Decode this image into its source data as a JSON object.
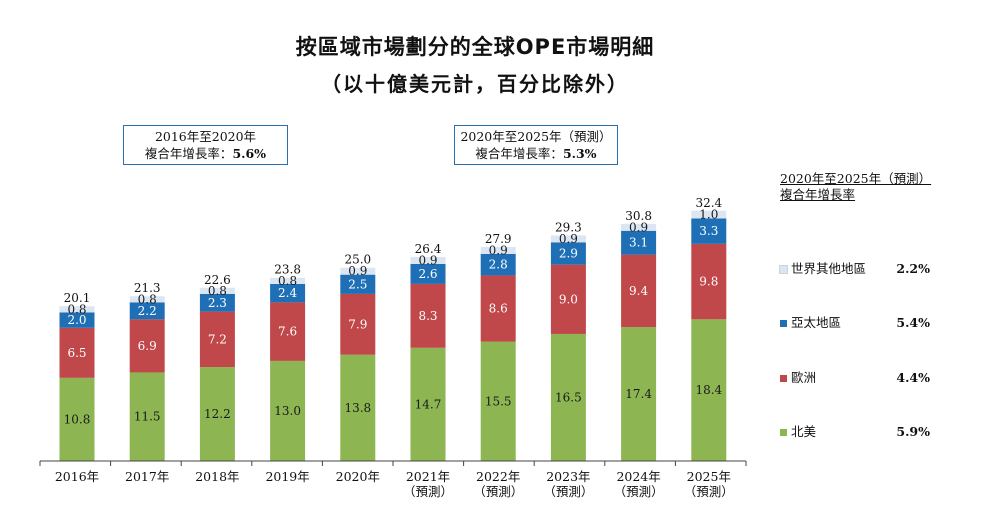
{
  "title_line1": "按區域市場劃分的全球OPE市場明細",
  "title_line2": "（以十億美元計，百分比除外）",
  "cagr_hist": {
    "line1": "2016年至2020年",
    "label": "複合年增長率：",
    "value": "5.6%"
  },
  "cagr_fcst": {
    "line1": "2020年至2025年（預測）",
    "label": "複合年增長率：",
    "value": "5.3%"
  },
  "legend": {
    "header_line1": "2020年至2025年（預測）",
    "header_line2": "複合年增長率",
    "items": [
      {
        "name": "世界其他地區",
        "cagr": "2.2%",
        "color": "#dbe6f2"
      },
      {
        "name": "亞太地區",
        "cagr": "5.4%",
        "color": "#1f6fb6"
      },
      {
        "name": "歐洲",
        "cagr": "4.4%",
        "color": "#c0474a"
      },
      {
        "name": "北美",
        "cagr": "5.9%",
        "color": "#8db653"
      }
    ]
  },
  "chart_data": {
    "type": "bar",
    "stacked": true,
    "categories": [
      [
        "2016年"
      ],
      [
        "2017年"
      ],
      [
        "2018年"
      ],
      [
        "2019年"
      ],
      [
        "2020年"
      ],
      [
        "2021年",
        "（預測）"
      ],
      [
        "2022年",
        "（預測）"
      ],
      [
        "2023年",
        "（預測）"
      ],
      [
        "2024年",
        "（預測）"
      ],
      [
        "2025年",
        "（預測）"
      ]
    ],
    "series": [
      {
        "name": "北美",
        "color": "#8db653",
        "values": [
          10.8,
          11.5,
          12.2,
          13.0,
          13.8,
          14.7,
          15.5,
          16.5,
          17.4,
          18.4
        ]
      },
      {
        "name": "歐洲",
        "color": "#c0474a",
        "values": [
          6.5,
          6.9,
          7.2,
          7.6,
          7.9,
          8.3,
          8.6,
          9.0,
          9.4,
          9.8
        ]
      },
      {
        "name": "亞太地區",
        "color": "#1f6fb6",
        "values": [
          2.0,
          2.2,
          2.3,
          2.4,
          2.5,
          2.6,
          2.8,
          2.9,
          3.1,
          3.3
        ]
      },
      {
        "name": "世界其他地區",
        "color": "#dbe6f2",
        "values": [
          0.8,
          0.8,
          0.8,
          0.8,
          0.9,
          0.9,
          0.9,
          0.9,
          0.9,
          1.0
        ]
      }
    ],
    "totals": [
      20.1,
      21.3,
      22.6,
      23.8,
      25.0,
      26.4,
      27.9,
      29.3,
      30.8,
      32.4
    ],
    "ylim": [
      0,
      35
    ],
    "grid": false,
    "legend_position": "right"
  }
}
